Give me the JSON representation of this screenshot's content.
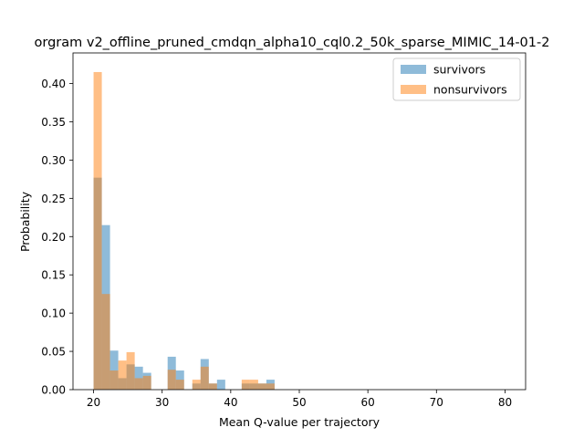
{
  "chart_data": {
    "type": "bar",
    "title": "orgram v2_offline_pruned_cmdqn_alpha10_cql0.2_50k_sparse_MIMIC_14-01-2",
    "xlabel": "Mean Q-value per trajectory",
    "ylabel": "Probability",
    "xlim": [
      17,
      83
    ],
    "ylim": [
      0,
      0.44
    ],
    "xticks": [
      20,
      30,
      40,
      50,
      60,
      70,
      80
    ],
    "yticks": [
      0.0,
      0.05,
      0.1,
      0.15,
      0.2,
      0.25,
      0.3,
      0.35,
      0.4
    ],
    "grid": false,
    "legend_position": "top-right",
    "bin_start": 20,
    "bin_width": 1.2,
    "series": [
      {
        "name": "survivors",
        "color": "#1f77b4",
        "alpha": 0.5,
        "values": [
          0.277,
          0.215,
          0.051,
          0.015,
          0.033,
          0.03,
          0.022,
          0,
          0,
          0.043,
          0.025,
          0,
          0.008,
          0.04,
          0.008,
          0.013,
          0,
          0,
          0.008,
          0.008,
          0.008,
          0.013
        ]
      },
      {
        "name": "nonsurvivors",
        "color": "#ff7f0e",
        "alpha": 0.5,
        "values": [
          0.415,
          0.125,
          0.025,
          0.038,
          0.049,
          0.015,
          0.018,
          0,
          0,
          0.026,
          0.013,
          0,
          0.013,
          0.03,
          0.008,
          0,
          0,
          0,
          0.013,
          0.013,
          0.008,
          0.008
        ]
      }
    ]
  }
}
